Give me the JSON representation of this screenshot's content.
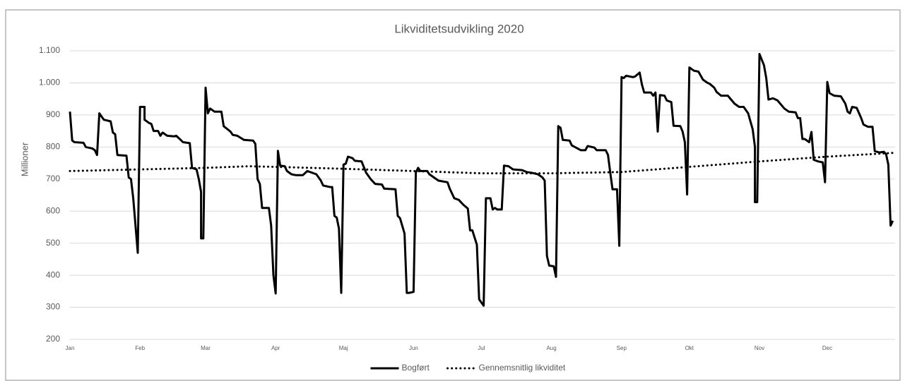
{
  "chart_data": {
    "type": "line",
    "title": "Likviditetsudvikling 2020",
    "ylabel": "Millioner",
    "xlim": [
      1,
      366
    ],
    "xticks": [
      {
        "value": 1,
        "label": "Jan"
      },
      {
        "value": 32,
        "label": "Feb"
      },
      {
        "value": 61,
        "label": "Mar"
      },
      {
        "value": 92,
        "label": "Apr"
      },
      {
        "value": 122,
        "label": "Maj"
      },
      {
        "value": 153,
        "label": "Jun"
      },
      {
        "value": 183,
        "label": "Jul"
      },
      {
        "value": 214,
        "label": "Aug"
      },
      {
        "value": 245,
        "label": "Sep"
      },
      {
        "value": 275,
        "label": "Okt"
      },
      {
        "value": 306,
        "label": "Nov"
      },
      {
        "value": 336,
        "label": "Dec"
      }
    ],
    "ylim": [
      200,
      1100
    ],
    "yticks": [
      200,
      300,
      400,
      500,
      600,
      700,
      800,
      900,
      {
        "value": 1000,
        "label": "1.000"
      },
      {
        "value": 1100,
        "label": "1.100"
      }
    ],
    "grid": true,
    "legend": "bottom",
    "series": [
      {
        "name": "Bogført",
        "color": "#000000",
        "line_style": "solid",
        "x": [
          1,
          2,
          3,
          7,
          8,
          11,
          12,
          13,
          14,
          16,
          19,
          20,
          21,
          22,
          26,
          27,
          28,
          29,
          31,
          32,
          34,
          34,
          36,
          37,
          38,
          40,
          41,
          42,
          44,
          47,
          48,
          50,
          51,
          54,
          55,
          57,
          58,
          59,
          59,
          60,
          61,
          62,
          63,
          65,
          68,
          69,
          72,
          73,
          75,
          78,
          82,
          83,
          84,
          85,
          86,
          89,
          90,
          91,
          92,
          93,
          94,
          96,
          97,
          99,
          101,
          104,
          106,
          108,
          110,
          112,
          113,
          116,
          117,
          118,
          119,
          120,
          121,
          122,
          123,
          124,
          126,
          127,
          130,
          132,
          134,
          136,
          139,
          140,
          145,
          146,
          147,
          149,
          150,
          151,
          153,
          154,
          155,
          156,
          159,
          160,
          162,
          164,
          168,
          169,
          171,
          173,
          175,
          177,
          178,
          179,
          181,
          182,
          184,
          185,
          187,
          188,
          189,
          190,
          192,
          193,
          195,
          197,
          201,
          203,
          205,
          208,
          210,
          211,
          212,
          213,
          215,
          216,
          217,
          218,
          219,
          222,
          223,
          227,
          229,
          230,
          233,
          234,
          238,
          239,
          240,
          241,
          243,
          244,
          245,
          246,
          247,
          250,
          251,
          253,
          254,
          255,
          258,
          259,
          260,
          261,
          262,
          264,
          265,
          267,
          268,
          271,
          272,
          273,
          274,
          275,
          277,
          279,
          281,
          283,
          284,
          286,
          287,
          289,
          292,
          295,
          297,
          299,
          301,
          303,
          304,
          304,
          305,
          306,
          308,
          309,
          310,
          312,
          314,
          317,
          319,
          322,
          323,
          324,
          325,
          326,
          328,
          329,
          330,
          332,
          334,
          335,
          336,
          337,
          339,
          342,
          344,
          345,
          346,
          347,
          349,
          351,
          352,
          354,
          356,
          357,
          359,
          361,
          362,
          363,
          364,
          365
        ],
        "values": [
          910,
          820,
          815,
          813,
          800,
          795,
          790,
          775,
          905,
          885,
          880,
          845,
          840,
          775,
          773,
          705,
          700,
          640,
          470,
          925,
          925,
          885,
          875,
          872,
          850,
          850,
          835,
          845,
          835,
          833,
          835,
          822,
          815,
          812,
          735,
          730,
          700,
          660,
          515,
          515,
          985,
          905,
          920,
          910,
          910,
          865,
          848,
          838,
          835,
          822,
          820,
          810,
          700,
          685,
          610,
          610,
          555,
          400,
          343,
          788,
          742,
          740,
          725,
          715,
          712,
          712,
          725,
          720,
          715,
          695,
          680,
          675,
          675,
          585,
          580,
          545,
          345,
          745,
          748,
          770,
          765,
          757,
          755,
          720,
          700,
          685,
          683,
          670,
          668,
          585,
          578,
          530,
          345,
          345,
          348,
          720,
          735,
          725,
          725,
          715,
          705,
          695,
          690,
          670,
          640,
          635,
          620,
          608,
          540,
          540,
          495,
          325,
          305,
          640,
          640,
          605,
          610,
          605,
          605,
          742,
          740,
          730,
          728,
          722,
          720,
          715,
          705,
          695,
          460,
          430,
          428,
          395,
          865,
          860,
          822,
          820,
          805,
          790,
          790,
          803,
          798,
          790,
          790,
          775,
          720,
          668,
          668,
          492,
          1018,
          1015,
          1022,
          1018,
          1020,
          1032,
          995,
          970,
          970,
          960,
          970,
          848,
          962,
          960,
          945,
          940,
          866,
          865,
          848,
          815,
          652,
          1048,
          1038,
          1035,
          1010,
          1000,
          997,
          985,
          972,
          960,
          960,
          935,
          925,
          925,
          905,
          855,
          800,
          628,
          628,
          1090,
          1055,
          1015,
          948,
          952,
          945,
          920,
          910,
          908,
          890,
          890,
          825,
          825,
          815,
          847,
          760,
          755,
          752,
          690,
          1003,
          968,
          960,
          958,
          935,
          910,
          905,
          925,
          922,
          890,
          870,
          863,
          863,
          787,
          783,
          785,
          778,
          745,
          555,
          570
        ]
      },
      {
        "name": "Gennemsnitlig likviditet",
        "color": "#000000",
        "line_style": "dotted",
        "x": [
          1,
          32,
          61,
          80,
          92,
          122,
          153,
          183,
          214,
          245,
          275,
          306,
          336,
          366
        ],
        "values": [
          725,
          730,
          735,
          740,
          738,
          732,
          725,
          718,
          718,
          722,
          738,
          755,
          770,
          782
        ]
      }
    ]
  }
}
